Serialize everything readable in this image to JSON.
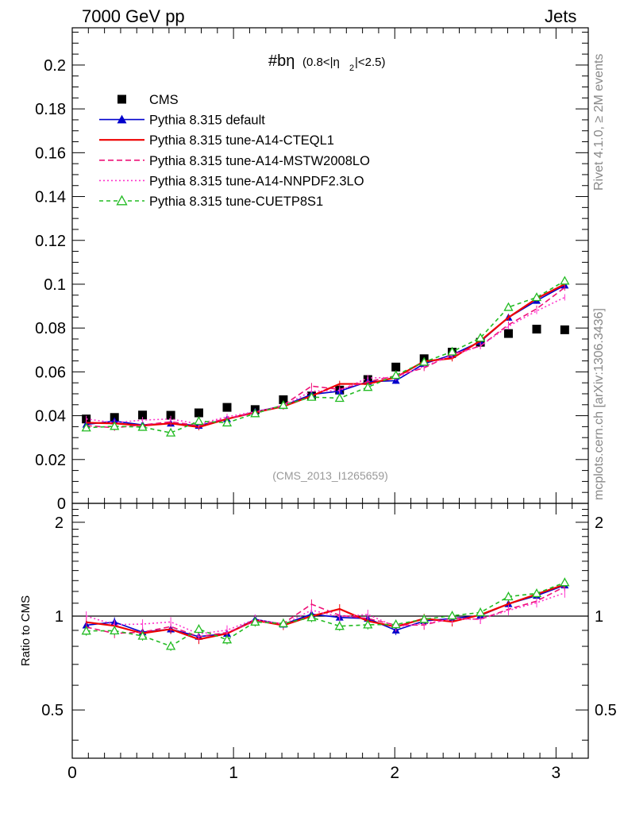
{
  "header": {
    "left": "7000 GeV pp",
    "right": "Jets"
  },
  "side_labels": {
    "rivet": "Rivet 4.1.0, ≥ 2M events",
    "mcplots": "mcplots.cern.ch [arXiv:1306.3436]"
  },
  "chart_data": {
    "type": "scatter",
    "title": "#bη",
    "title_detail": "(0.8<|η",
    "title_sub": "2",
    "title_tail": "|<2.5)",
    "watermark": "(CMS_2013_I1265659)",
    "xlim": [
      0,
      3.2
    ],
    "ylim_main": [
      0,
      0.217
    ],
    "ylim_ratio": [
      0.35,
      2.3
    ],
    "ratio_ylabel": "Ratio to CMS",
    "x_ticks": [
      "0",
      "1",
      "2",
      "3"
    ],
    "y_ticks_main": [
      "0",
      "0.02",
      "0.04",
      "0.06",
      "0.08",
      "0.1",
      "0.12",
      "0.14",
      "0.16",
      "0.18",
      "0.2"
    ],
    "y_ticks_ratio": [
      "0.5",
      "1",
      "2"
    ],
    "x": [
      0.087,
      0.262,
      0.436,
      0.611,
      0.785,
      0.96,
      1.134,
      1.309,
      1.484,
      1.658,
      1.833,
      2.007,
      2.182,
      2.356,
      2.531,
      2.705,
      2.88,
      3.054
    ],
    "series": [
      {
        "name": "CMS",
        "color": "#000000",
        "style": "data",
        "values": [
          0.0385,
          0.0392,
          0.0403,
          0.0402,
          0.0413,
          0.0438,
          0.0428,
          0.0473,
          0.049,
          0.0517,
          0.0565,
          0.0622,
          0.066,
          0.069,
          0.0735,
          0.0775,
          0.0795,
          0.0792
        ]
      },
      {
        "name": "Pythia 8.315 default",
        "color": "#0000cc",
        "style": "solid-tri",
        "values": [
          0.036,
          0.0375,
          0.0358,
          0.0365,
          0.0355,
          0.0385,
          0.0418,
          0.0445,
          0.0497,
          0.0512,
          0.0555,
          0.056,
          0.0637,
          0.0678,
          0.0738,
          0.0848,
          0.0925,
          0.0995
        ]
      },
      {
        "name": "Pythia 8.315 tune-A14-CTEQL1",
        "color": "#ee0000",
        "style": "solid",
        "values": [
          0.0368,
          0.0365,
          0.0355,
          0.0365,
          0.0348,
          0.0385,
          0.0415,
          0.0442,
          0.049,
          0.0545,
          0.0545,
          0.0575,
          0.0648,
          0.0662,
          0.0742,
          0.0848,
          0.0935,
          0.1
        ]
      },
      {
        "name": "Pythia 8.315 tune-A14-MSTW2008LO",
        "color": "#ee1177",
        "style": "dashed",
        "values": [
          0.0355,
          0.0345,
          0.0358,
          0.0372,
          0.0355,
          0.0388,
          0.0412,
          0.0448,
          0.0535,
          0.052,
          0.0555,
          0.0582,
          0.0618,
          0.068,
          0.0718,
          0.0815,
          0.0888,
          0.0985
        ]
      },
      {
        "name": "Pythia 8.315 tune-A14-NNPDF2.3LO",
        "color": "#ff33cc",
        "style": "dotted",
        "values": [
          0.0385,
          0.0368,
          0.038,
          0.0385,
          0.0362,
          0.0395,
          0.0418,
          0.0445,
          0.0512,
          0.0515,
          0.0572,
          0.0575,
          0.0625,
          0.0675,
          0.0718,
          0.0808,
          0.0878,
          0.094
        ]
      },
      {
        "name": "Pythia 8.315 tune-CUETP8S1",
        "color": "#22bb22",
        "style": "dashed-opentri",
        "values": [
          0.0345,
          0.0352,
          0.0348,
          0.0322,
          0.0375,
          0.0368,
          0.041,
          0.0448,
          0.0485,
          0.048,
          0.053,
          0.0585,
          0.0645,
          0.0692,
          0.0755,
          0.0895,
          0.094,
          0.1015
        ]
      }
    ]
  }
}
